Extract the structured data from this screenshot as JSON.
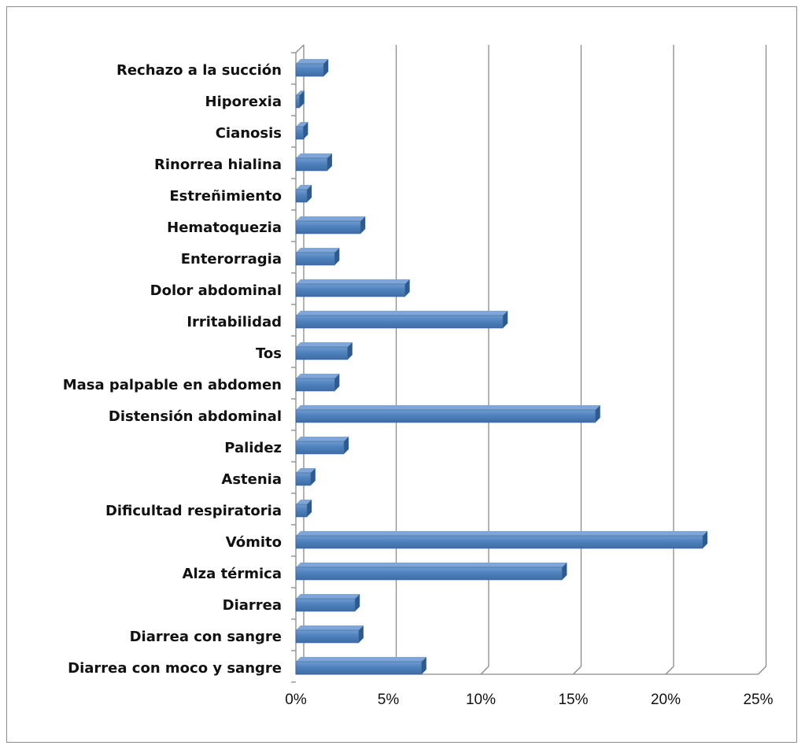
{
  "chart_data": {
    "type": "bar",
    "orientation": "horizontal",
    "categories": [
      "Rechazo a la succión",
      "Hiporexia",
      "Cianosis",
      "Rinorrea hialina",
      "Estreñimiento",
      "Hematoquezia",
      "Enterorragia",
      "Dolor abdominal",
      "Irritabilidad",
      "Tos",
      "Masa palpable en abdomen",
      "Distensión abdominal",
      "Palidez",
      "Astenia",
      "Dificultad respiratoria",
      "Vómito",
      "Alza térmica",
      "Diarrea",
      "Diarrea con sangre",
      "Diarrea con moco y sangre"
    ],
    "values": [
      1.5,
      0.2,
      0.4,
      1.7,
      0.6,
      3.5,
      2.1,
      5.9,
      11.2,
      2.8,
      2.1,
      16.2,
      2.6,
      0.8,
      0.6,
      22.0,
      14.4,
      3.2,
      3.4,
      6.8
    ],
    "value_unit": "%",
    "xlim": [
      0,
      25
    ],
    "xticks": [
      "0%",
      "5%",
      "10%",
      "15%",
      "20%",
      "25%"
    ],
    "xtick_values": [
      0,
      5,
      10,
      15,
      20,
      25
    ],
    "grid": "vertical",
    "bar_color": "#4f81bd",
    "legend": "none"
  }
}
